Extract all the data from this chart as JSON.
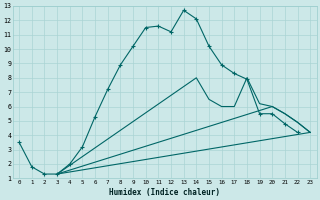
{
  "xlabel": "Humidex (Indice chaleur)",
  "xlim": [
    -0.5,
    23.5
  ],
  "ylim": [
    1,
    13
  ],
  "xticks": [
    0,
    1,
    2,
    3,
    4,
    5,
    6,
    7,
    8,
    9,
    10,
    11,
    12,
    13,
    14,
    15,
    16,
    17,
    18,
    19,
    20,
    21,
    22,
    23
  ],
  "yticks": [
    1,
    2,
    3,
    4,
    5,
    6,
    7,
    8,
    9,
    10,
    11,
    12,
    13
  ],
  "bg_color": "#cce8e8",
  "grid_color": "#aad4d4",
  "line_color": "#006666",
  "line1_x": [
    0,
    1,
    2,
    3,
    4,
    5,
    6,
    7,
    8,
    9,
    10,
    11,
    12,
    13,
    14,
    15,
    16,
    17,
    18,
    19,
    20,
    21,
    22
  ],
  "line1_y": [
    3.5,
    1.8,
    1.3,
    1.3,
    2.0,
    3.2,
    5.3,
    7.2,
    8.9,
    10.2,
    11.5,
    11.6,
    11.2,
    12.7,
    12.1,
    10.2,
    8.9,
    8.3,
    7.9,
    5.5,
    5.5,
    4.8,
    4.2
  ],
  "line2_x": [
    3,
    23
  ],
  "line2_y": [
    1.3,
    4.2
  ],
  "line3_x": [
    3,
    20,
    21,
    22,
    23
  ],
  "line3_y": [
    1.3,
    6.0,
    5.5,
    4.9,
    4.2
  ],
  "line4_x": [
    3,
    14,
    15,
    16,
    17,
    18,
    19,
    20,
    21,
    22,
    23
  ],
  "line4_y": [
    1.3,
    8.0,
    6.5,
    6.0,
    6.0,
    8.0,
    6.2,
    6.0,
    5.5,
    4.9,
    4.2
  ]
}
